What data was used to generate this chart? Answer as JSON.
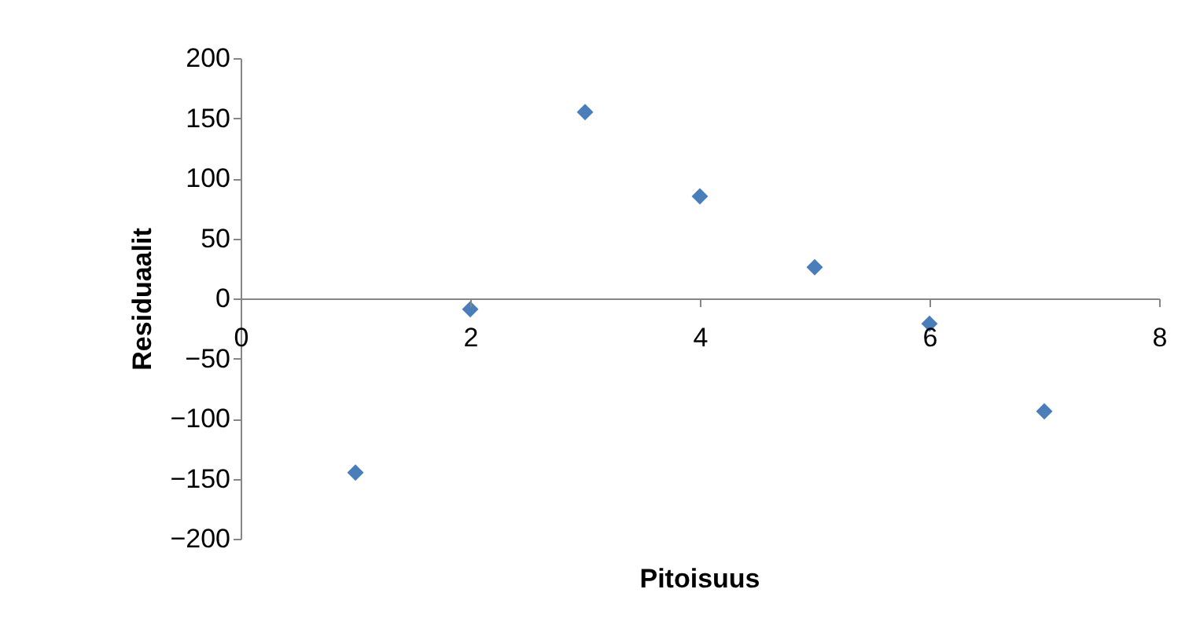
{
  "chart_data": {
    "type": "scatter",
    "xlabel": "Pitoisuus",
    "ylabel": "Residuaalit",
    "x": [
      1,
      2,
      3,
      4,
      5,
      6,
      7
    ],
    "series": [
      {
        "color": "#4a7ebb",
        "values": [
          -145,
          -9,
          155,
          85,
          26,
          -21,
          -94
        ]
      }
    ],
    "xlim": [
      0,
      8
    ],
    "xticks": [
      0,
      2,
      4,
      6,
      8
    ],
    "ylim": [
      -200,
      200
    ],
    "yticks": [
      -200,
      -150,
      -100,
      -50,
      0,
      50,
      100,
      150,
      200
    ],
    "grid": false,
    "legend": false,
    "marker": "diamond"
  }
}
